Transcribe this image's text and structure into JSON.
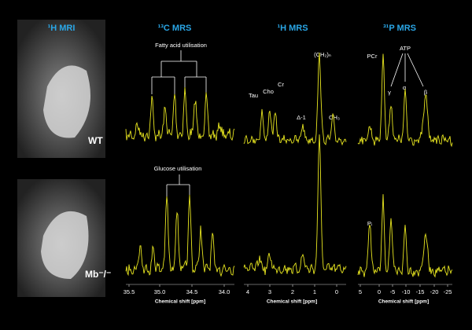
{
  "panels": [
    {
      "title": "¹H MRI",
      "labels": [
        "WT",
        "Mb⁻/⁻"
      ]
    },
    {
      "title": "¹³C MRS",
      "annotations": [
        "Fatty acid utilisation",
        "Glucose utilisation"
      ],
      "ticks": [
        "35.5",
        "35.0",
        "34.5",
        "34.0"
      ],
      "axis_label": "Chemical shift [ppm]"
    },
    {
      "title": "¹H MRS",
      "annotations": [
        "Tau",
        "Cho",
        "Cr",
        "Δ-1",
        "(CH₂)ₙ",
        "CH₃"
      ],
      "ticks": [
        "4",
        "3",
        "2",
        "1",
        "0"
      ],
      "axis_label": "Chemical shift [ppm]"
    },
    {
      "title": "³¹P MRS",
      "annotations": [
        "PCr",
        "ATP",
        "γ",
        "α",
        "β",
        "Pᵢ"
      ],
      "ticks": [
        "5",
        "0",
        "-5",
        "-10",
        "-15",
        "-20",
        "-25"
      ],
      "axis_label": "Chemical shift [ppm]"
    }
  ]
}
